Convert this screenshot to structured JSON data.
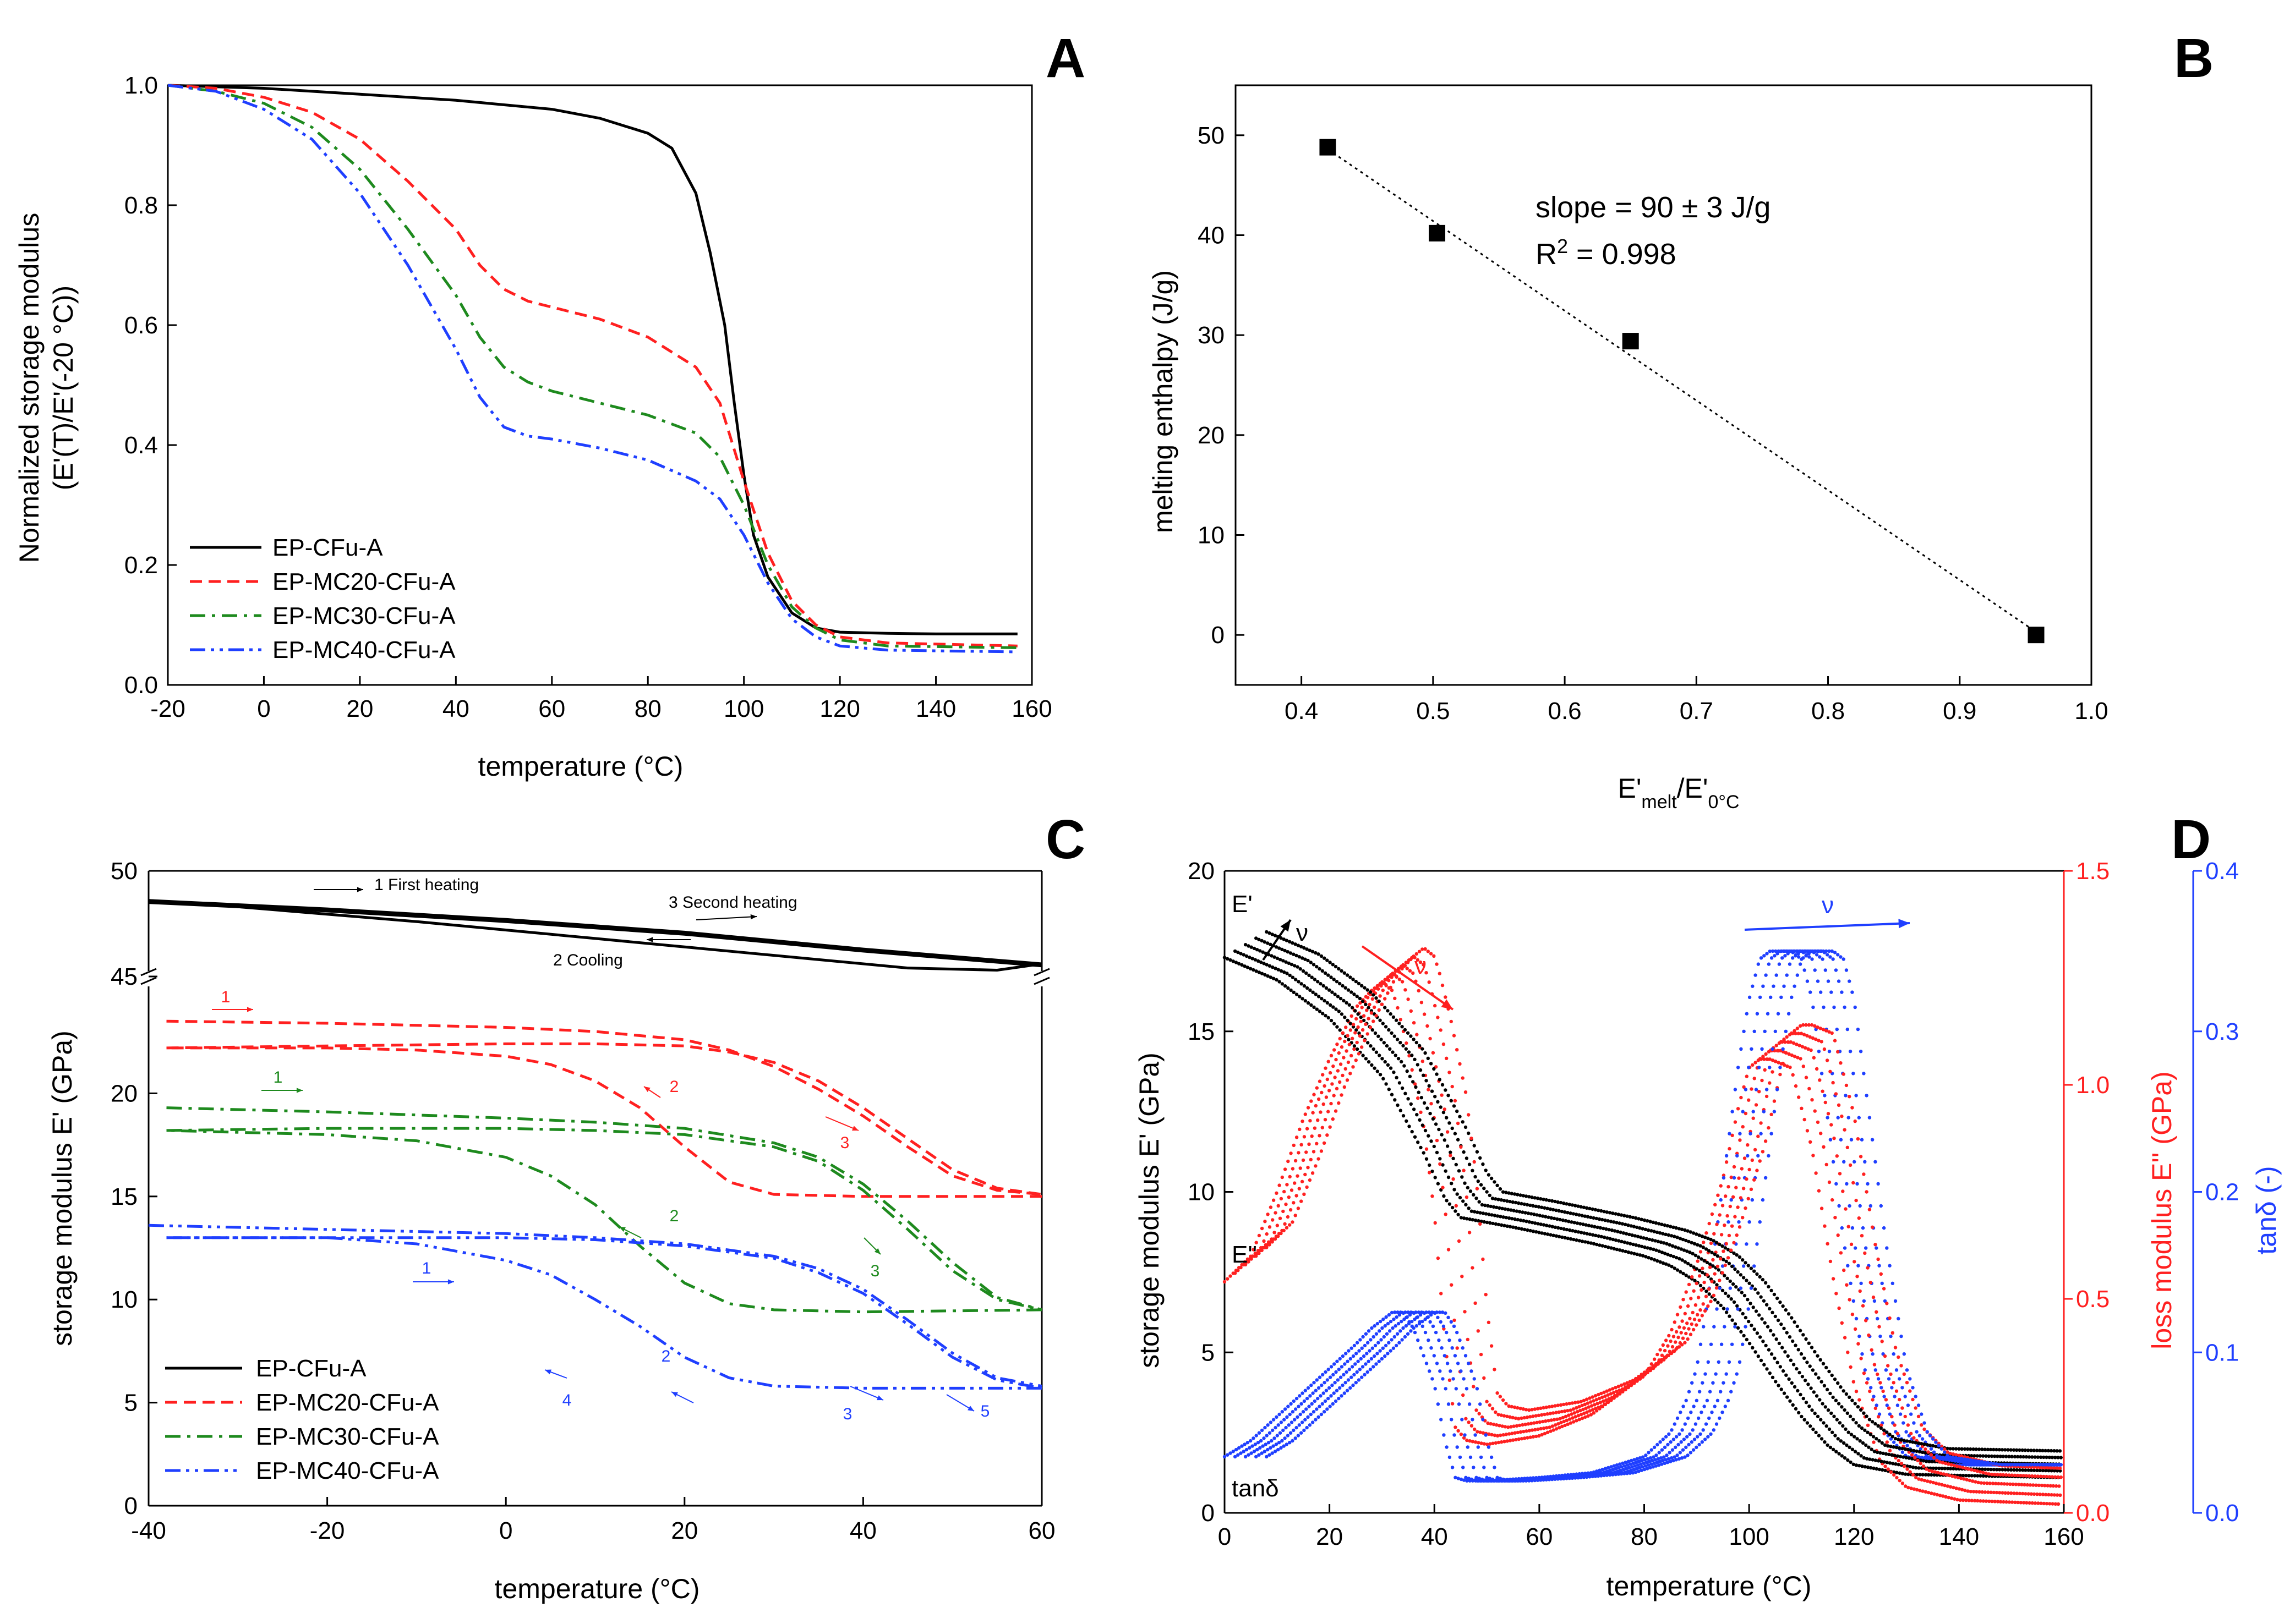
{
  "figure": {
    "panels": [
      "A",
      "B",
      "C",
      "D"
    ]
  },
  "chart_data": [
    {
      "id": "A",
      "type": "line",
      "letter": "A",
      "xlabel": "temperature (°C)",
      "ylabel_line1": "Normalized storage modulus",
      "ylabel_line2": "(E'(T)/E'(-20 °C))",
      "xlim": [
        -20,
        160
      ],
      "ylim": [
        0.0,
        1.0
      ],
      "xticks": [
        "-20",
        "0",
        "20",
        "40",
        "60",
        "80",
        "100",
        "120",
        "140",
        "160"
      ],
      "yticks": [
        "0.0",
        "0.2",
        "0.4",
        "0.6",
        "0.8",
        "1.0"
      ],
      "legend_position": "lower-left",
      "series": [
        {
          "name": "EP-CFu-A",
          "color": "#000000",
          "dash": "solid",
          "x": [
            -20,
            0,
            20,
            40,
            60,
            70,
            80,
            85,
            90,
            93,
            96,
            98,
            100,
            102,
            105,
            110,
            115,
            120,
            130,
            140,
            157
          ],
          "y": [
            1.0,
            0.995,
            0.985,
            0.975,
            0.96,
            0.945,
            0.92,
            0.895,
            0.82,
            0.72,
            0.6,
            0.47,
            0.35,
            0.25,
            0.18,
            0.12,
            0.095,
            0.088,
            0.086,
            0.085,
            0.085
          ]
        },
        {
          "name": "EP-MC20-CFu-A",
          "color": "#ff2020",
          "dash": "dash",
          "x": [
            -20,
            -10,
            0,
            10,
            20,
            30,
            40,
            45,
            50,
            55,
            60,
            70,
            80,
            90,
            95,
            100,
            105,
            110,
            115,
            120,
            130,
            157
          ],
          "y": [
            1.0,
            0.995,
            0.98,
            0.955,
            0.91,
            0.84,
            0.76,
            0.7,
            0.66,
            0.64,
            0.63,
            0.61,
            0.58,
            0.53,
            0.47,
            0.34,
            0.22,
            0.14,
            0.1,
            0.08,
            0.07,
            0.065
          ]
        },
        {
          "name": "EP-MC30-CFu-A",
          "color": "#1e8a1e",
          "dash": "dashdot",
          "x": [
            -20,
            -10,
            0,
            10,
            20,
            30,
            40,
            45,
            50,
            55,
            60,
            70,
            80,
            90,
            95,
            100,
            105,
            110,
            115,
            120,
            130,
            157
          ],
          "y": [
            1.0,
            0.99,
            0.97,
            0.93,
            0.86,
            0.76,
            0.65,
            0.58,
            0.53,
            0.505,
            0.49,
            0.47,
            0.45,
            0.42,
            0.38,
            0.3,
            0.2,
            0.13,
            0.095,
            0.075,
            0.065,
            0.062
          ]
        },
        {
          "name": "EP-MC40-CFu-A",
          "color": "#1f3fff",
          "dash": "dashdotdot",
          "x": [
            -20,
            -10,
            0,
            10,
            20,
            30,
            40,
            45,
            50,
            55,
            60,
            70,
            80,
            90,
            95,
            100,
            105,
            110,
            115,
            120,
            130,
            157
          ],
          "y": [
            1.0,
            0.99,
            0.96,
            0.91,
            0.82,
            0.7,
            0.56,
            0.48,
            0.43,
            0.415,
            0.41,
            0.395,
            0.375,
            0.34,
            0.31,
            0.25,
            0.17,
            0.11,
            0.08,
            0.065,
            0.058,
            0.055
          ]
        }
      ]
    },
    {
      "id": "B",
      "type": "scatter",
      "letter": "B",
      "xlabel_main": "E'",
      "xlabel_sub1": "melt",
      "xlabel_mid": "/E'",
      "xlabel_sub2": "0°C",
      "ylabel": "melting enthalpy (J/g)",
      "xlim": [
        0.35,
        1.0
      ],
      "ylim": [
        -5,
        55
      ],
      "xticks": [
        "0.4",
        "0.5",
        "0.6",
        "0.7",
        "0.8",
        "0.9",
        "1.0"
      ],
      "yticks": [
        "0",
        "10",
        "20",
        "30",
        "40",
        "50"
      ],
      "points_x": [
        0.42,
        0.503,
        0.65,
        0.958
      ],
      "points_y": [
        48.8,
        40.2,
        29.4,
        0.0
      ],
      "fit_line_x": [
        0.42,
        0.958
      ],
      "fit_line_y": [
        48.6,
        0.3
      ],
      "annotation_slope": "slope = 90 ± 3 J/g",
      "annotation_r2_prefix": "R",
      "annotation_r2_sup": "2",
      "annotation_r2_rest": " = 0.998"
    },
    {
      "id": "C",
      "type": "line",
      "letter": "C",
      "xlabel": "temperature (°C)",
      "ylabel": "storage modulus E' (GPa)",
      "xlim": [
        -40,
        60
      ],
      "ylim_lower": [
        0,
        25
      ],
      "ylim_upper": [
        45,
        50
      ],
      "xticks": [
        "-40",
        "-20",
        "0",
        "20",
        "40",
        "60"
      ],
      "yticks_lower": [
        "0",
        "5",
        "10",
        "15",
        "20"
      ],
      "yticks_upper": [
        "45",
        "50"
      ],
      "legend_position": "lower-left",
      "legend": [
        "EP-CFu-A",
        "EP-MC20-CFu-A",
        "EP-MC30-CFu-A",
        "EP-MC40-CFu-A"
      ],
      "labels_black": [
        "1 First heating",
        "3 Second heating",
        "2 Cooling"
      ],
      "labels_red": [
        "1",
        "2",
        "3"
      ],
      "labels_green": [
        "1",
        "2",
        "3"
      ],
      "labels_blue": [
        "1",
        "2",
        "3",
        "4",
        "5"
      ],
      "series": [
        {
          "name": "EP-CFu-A first heating",
          "color": "#000000",
          "dash": "solid",
          "segment": "upper",
          "x": [
            -40,
            -20,
            0,
            20,
            40,
            60
          ],
          "y": [
            48.6,
            48.2,
            47.7,
            47.1,
            46.3,
            45.6
          ]
        },
        {
          "name": "EP-CFu-A cooling",
          "color": "#000000",
          "dash": "solid",
          "segment": "upper",
          "x": [
            60,
            55,
            45,
            30,
            10,
            -10,
            -30,
            -40
          ],
          "y": [
            45.6,
            45.3,
            45.4,
            46.0,
            46.8,
            47.6,
            48.3,
            48.6
          ]
        },
        {
          "name": "EP-CFu-A second heating",
          "color": "#000000",
          "dash": "solid",
          "segment": "upper",
          "x": [
            -40,
            -20,
            0,
            20,
            40,
            60
          ],
          "y": [
            48.5,
            48.1,
            47.6,
            47.0,
            46.2,
            45.5
          ]
        },
        {
          "name": "EP-MC20-CFu-A heating 1",
          "color": "#ff2020",
          "dash": "dash",
          "x": [
            -38,
            -20,
            0,
            10,
            20,
            25,
            30,
            35,
            40,
            45,
            50,
            55,
            60
          ],
          "y": [
            23.5,
            23.4,
            23.2,
            23.0,
            22.6,
            22.1,
            21.3,
            20.2,
            18.9,
            17.4,
            16.0,
            15.3,
            15.1
          ]
        },
        {
          "name": "EP-MC20-CFu-A cooling",
          "color": "#ff2020",
          "dash": "dash",
          "x": [
            60,
            40,
            30,
            25,
            20,
            15,
            10,
            5,
            0,
            -10,
            -20,
            -38
          ],
          "y": [
            15.0,
            15.0,
            15.1,
            15.7,
            17.4,
            19.3,
            20.6,
            21.4,
            21.8,
            22.1,
            22.2,
            22.2
          ]
        },
        {
          "name": "EP-MC20-CFu-A heating 2",
          "color": "#ff2020",
          "dash": "dash",
          "x": [
            -38,
            -20,
            0,
            10,
            20,
            25,
            30,
            35,
            40,
            45,
            50,
            55,
            60
          ],
          "y": [
            22.2,
            22.3,
            22.4,
            22.4,
            22.3,
            22.0,
            21.5,
            20.6,
            19.3,
            17.8,
            16.3,
            15.4,
            15.1
          ]
        },
        {
          "name": "EP-MC30-CFu-A heating 1",
          "color": "#1e8a1e",
          "dash": "dashdot",
          "x": [
            -38,
            -20,
            0,
            10,
            20,
            30,
            35,
            40,
            45,
            50,
            55,
            60
          ],
          "y": [
            19.3,
            19.1,
            18.8,
            18.6,
            18.3,
            17.6,
            16.9,
            15.6,
            13.8,
            11.8,
            10.1,
            9.5
          ]
        },
        {
          "name": "EP-MC30-CFu-A cooling",
          "color": "#1e8a1e",
          "dash": "dashdot",
          "x": [
            60,
            40,
            30,
            25,
            20,
            15,
            10,
            5,
            0,
            -10,
            -20,
            -38
          ],
          "y": [
            9.5,
            9.4,
            9.5,
            9.8,
            10.8,
            12.6,
            14.6,
            16.0,
            16.9,
            17.7,
            18.0,
            18.2
          ]
        },
        {
          "name": "EP-MC30-CFu-A heating 2",
          "color": "#1e8a1e",
          "dash": "dashdot",
          "x": [
            -38,
            -20,
            0,
            10,
            20,
            30,
            35,
            40,
            45,
            50,
            55,
            60
          ],
          "y": [
            18.2,
            18.3,
            18.3,
            18.2,
            18.0,
            17.4,
            16.7,
            15.3,
            13.4,
            11.4,
            10.0,
            9.5
          ]
        },
        {
          "name": "EP-MC40-CFu-A heating 1",
          "color": "#1f3fff",
          "dash": "dashdotdot",
          "x": [
            -40,
            -20,
            0,
            10,
            20,
            30,
            35,
            40,
            45,
            50,
            55,
            60
          ],
          "y": [
            13.6,
            13.4,
            13.2,
            13.0,
            12.7,
            12.1,
            11.5,
            10.5,
            9.0,
            7.4,
            6.2,
            5.8
          ]
        },
        {
          "name": "EP-MC40-CFu-A cooling",
          "color": "#1f3fff",
          "dash": "dashdotdot",
          "x": [
            60,
            40,
            30,
            25,
            20,
            15,
            10,
            5,
            0,
            -10,
            -20,
            -38
          ],
          "y": [
            5.7,
            5.7,
            5.8,
            6.2,
            7.2,
            8.7,
            10.0,
            11.2,
            11.9,
            12.7,
            13.0,
            13.0
          ]
        },
        {
          "name": "EP-MC40-CFu-A heating 2",
          "color": "#1f3fff",
          "dash": "dashdotdot",
          "x": [
            -38,
            -20,
            0,
            10,
            20,
            30,
            35,
            40,
            45,
            50,
            55,
            60
          ],
          "y": [
            13.0,
            13.0,
            13.0,
            12.9,
            12.6,
            12.0,
            11.3,
            10.3,
            8.8,
            7.2,
            6.1,
            5.7
          ]
        }
      ]
    },
    {
      "id": "D",
      "type": "scatter",
      "letter": "D",
      "xlabel": "temperature (°C)",
      "ylabel_left": "storage modulus E' (GPa)",
      "ylabel_right1": "loss modulus E'' (GPa)",
      "ylabel_right2": "tanδ (-)",
      "xlim": [
        0,
        160
      ],
      "ylim_left": [
        0,
        20
      ],
      "ylim_right1": [
        0.0,
        1.5
      ],
      "ylim_right2": [
        0.0,
        0.4
      ],
      "xticks": [
        "0",
        "20",
        "40",
        "60",
        "80",
        "100",
        "120",
        "140",
        "160"
      ],
      "yticks_left": [
        "0",
        "5",
        "10",
        "15",
        "20"
      ],
      "yticks_right1": [
        "0.0",
        "0.5",
        "1.0",
        "1.5"
      ],
      "yticks_right2": [
        "0.0",
        "0.1",
        "0.2",
        "0.3",
        "0.4"
      ],
      "label_Eprime": "E'",
      "label_Edouble": "E''",
      "label_tand": "tanδ",
      "label_nu": "ν",
      "colors": {
        "storage": "#000000",
        "loss": "#ff2020",
        "tand": "#1f3fff"
      },
      "frequency_shifts": [
        0,
        2,
        4,
        6,
        8
      ],
      "storage_base_x": [
        0,
        10,
        20,
        30,
        38,
        42,
        45,
        55,
        70,
        80,
        85,
        90,
        95,
        100,
        105,
        110,
        115,
        120,
        130,
        160
      ],
      "storage_base_y": [
        17.3,
        16.6,
        15.4,
        13.6,
        11.2,
        9.8,
        9.2,
        8.9,
        8.4,
        8.0,
        7.7,
        7.2,
        6.4,
        5.3,
        4.1,
        3.0,
        2.1,
        1.5,
        1.2,
        1.1
      ],
      "loss_base_x": [
        0,
        5,
        10,
        15,
        20,
        25,
        28,
        30,
        32,
        33,
        35,
        38,
        40,
        42,
        44,
        46,
        50,
        60,
        70,
        80,
        85,
        90,
        95,
        98,
        100,
        102,
        104,
        108,
        112,
        116,
        120,
        125,
        130,
        140,
        160
      ],
      "loss_base_y": [
        0.54,
        0.6,
        0.75,
        0.92,
        1.06,
        1.18,
        1.22,
        1.24,
        1.22,
        1.18,
        1.08,
        0.9,
        0.7,
        0.4,
        0.2,
        0.17,
        0.16,
        0.18,
        0.23,
        0.32,
        0.42,
        0.58,
        0.78,
        0.95,
        1.04,
        1.06,
        1.06,
        1.04,
        0.85,
        0.55,
        0.3,
        0.12,
        0.06,
        0.03,
        0.02
      ],
      "tand_base_x": [
        0,
        5,
        10,
        15,
        20,
        25,
        28,
        30,
        32,
        34,
        36,
        40,
        42,
        44,
        46,
        50,
        60,
        70,
        80,
        85,
        88,
        90,
        92,
        94,
        96,
        98,
        100,
        102,
        104,
        106,
        108,
        110,
        112,
        114,
        118,
        122,
        126,
        130,
        140,
        160
      ],
      "tand_base_y": [
        0.035,
        0.045,
        0.06,
        0.075,
        0.09,
        0.105,
        0.115,
        0.12,
        0.125,
        0.125,
        0.115,
        0.08,
        0.045,
        0.022,
        0.02,
        0.02,
        0.022,
        0.025,
        0.035,
        0.05,
        0.07,
        0.09,
        0.13,
        0.18,
        0.23,
        0.28,
        0.32,
        0.345,
        0.35,
        0.35,
        0.35,
        0.345,
        0.32,
        0.27,
        0.17,
        0.09,
        0.05,
        0.035,
        0.03,
        0.03
      ]
    }
  ]
}
